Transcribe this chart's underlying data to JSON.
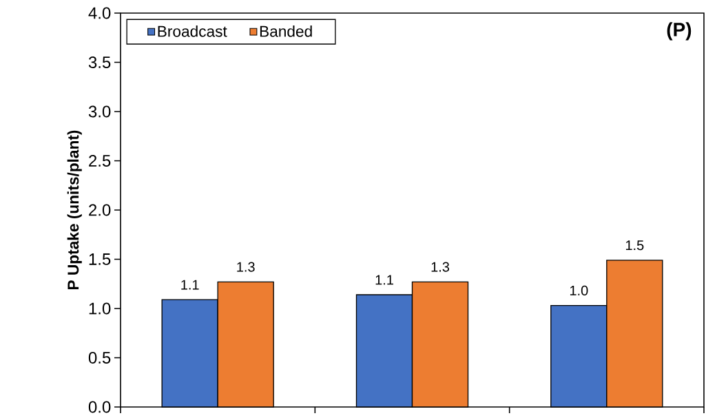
{
  "chart_data": {
    "type": "bar",
    "ylabel": "P Uptake (units/plant)",
    "categories": [
      null,
      null,
      null
    ],
    "series": [
      {
        "name": "Broadcast",
        "color": "#4472c4",
        "values": [
          1.09,
          1.14,
          1.03
        ],
        "value_labels": [
          "1.1",
          "1.1",
          "1.0"
        ]
      },
      {
        "name": "Banded",
        "color": "#ed7d31",
        "values": [
          1.27,
          1.27,
          1.49
        ],
        "value_labels": [
          "1.3",
          "1.3",
          "1.5"
        ]
      }
    ],
    "ylim": [
      0,
      4
    ],
    "yticks": [
      {
        "value": 0,
        "label": "0.0"
      },
      {
        "value": 0.5,
        "label": "0.5"
      },
      {
        "value": 1,
        "label": "1.0"
      },
      {
        "value": 1.5,
        "label": "1.5"
      },
      {
        "value": 2,
        "label": "2.0"
      },
      {
        "value": 2.5,
        "label": "2.5"
      },
      {
        "value": 3,
        "label": "3.0"
      },
      {
        "value": 3.5,
        "label": "3.5"
      },
      {
        "value": 4,
        "label": "4.0"
      }
    ],
    "grid": false,
    "legend": "top left",
    "annotations": [
      "(P)"
    ]
  }
}
